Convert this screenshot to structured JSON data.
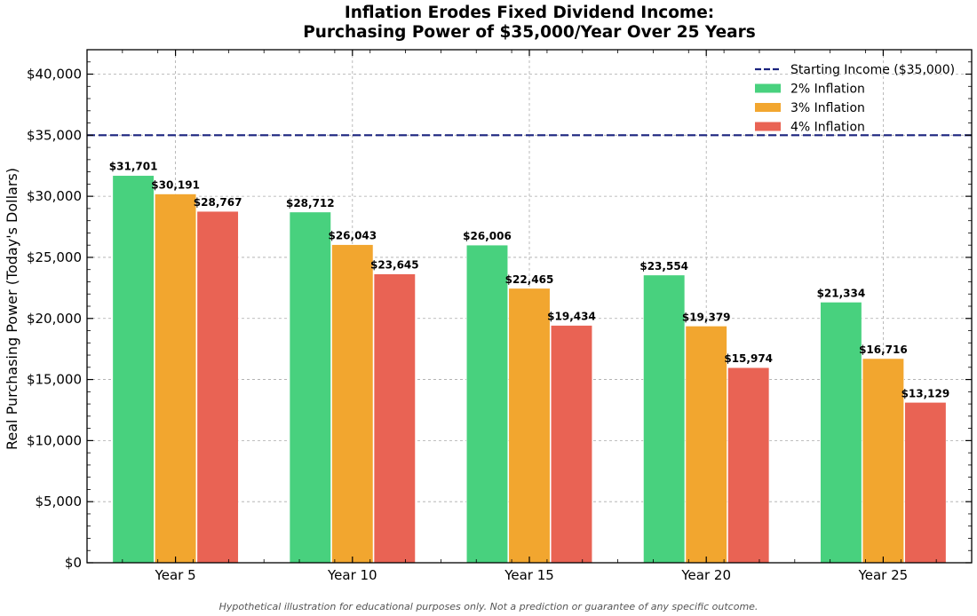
{
  "chart_data": {
    "type": "bar",
    "title_line1": "Inflation Erodes Fixed Dividend Income:",
    "title_line2": "Purchasing Power of $35,000/Year Over 25 Years",
    "ylabel": "Real Purchasing Power (Today's Dollars)",
    "xlabel": "",
    "categories": [
      "Year 5",
      "Year 10",
      "Year 15",
      "Year 20",
      "Year 25"
    ],
    "ylim": [
      0,
      42000
    ],
    "yticks": [
      0,
      5000,
      10000,
      15000,
      20000,
      25000,
      30000,
      35000,
      40000
    ],
    "ytick_labels": [
      "$0",
      "$5,000",
      "$10,000",
      "$15,000",
      "$20,000",
      "$25,000",
      "$30,000",
      "$35,000",
      "$40,000"
    ],
    "grid": true,
    "legend_position": "top-right",
    "reference_line": {
      "name": "Starting Income ($35,000)",
      "value": 35000,
      "color": "#1a237e"
    },
    "series": [
      {
        "name": "2% Inflation",
        "color": "#48d17e",
        "values": [
          31701,
          28712,
          26006,
          23554,
          21334
        ],
        "labels": [
          "$31,701",
          "$28,712",
          "$26,006",
          "$23,554",
          "$21,334"
        ]
      },
      {
        "name": "3% Inflation",
        "color": "#f2a62f",
        "values": [
          30191,
          26043,
          22465,
          19379,
          16716
        ],
        "labels": [
          "$30,191",
          "$26,043",
          "$22,465",
          "$19,379",
          "$16,716"
        ]
      },
      {
        "name": "4% Inflation",
        "color": "#e96354",
        "values": [
          28767,
          23645,
          19434,
          15974,
          13129
        ],
        "labels": [
          "$28,767",
          "$23,645",
          "$19,434",
          "$15,974",
          "$13,129"
        ]
      }
    ]
  },
  "footnote": "Hypothetical illustration for educational purposes only. Not a prediction or guarantee of any specific outcome."
}
